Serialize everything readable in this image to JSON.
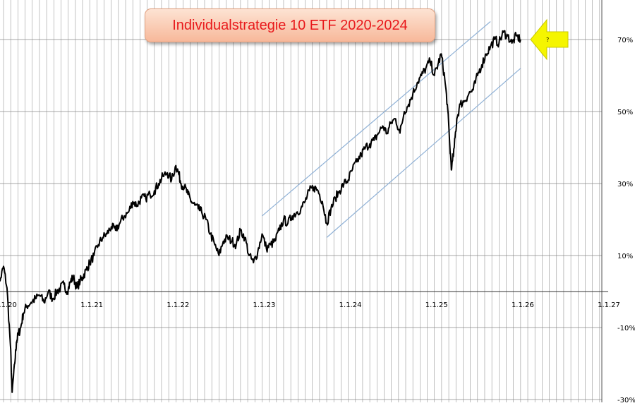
{
  "chart_data": {
    "type": "line",
    "title": "Individualstrategie 10 ETF 2020-2024",
    "annotation": "?",
    "xlim": [
      2020,
      2027
    ],
    "x_tick_labels": [
      {
        "x": 2020,
        "label": "1.1.20"
      },
      {
        "x": 2021,
        "label": "1.1.21"
      },
      {
        "x": 2022,
        "label": "1.1.22"
      },
      {
        "x": 2023,
        "label": "1.1.23"
      },
      {
        "x": 2024,
        "label": "1.1.24"
      },
      {
        "x": 2025,
        "label": "1.1.25"
      },
      {
        "x": 2026,
        "label": "1.1.26"
      },
      {
        "x": 2027,
        "label": "1.1.27"
      }
    ],
    "y_tick_labels": [
      {
        "y": 70,
        "label": "70%"
      },
      {
        "y": 50,
        "label": "50%"
      },
      {
        "y": 30,
        "label": "30%"
      },
      {
        "y": 10,
        "label": "10%"
      },
      {
        "y": -10,
        "label": "-10%"
      },
      {
        "y": -30,
        "label": "-30%"
      }
    ],
    "ylim": [
      -30,
      80
    ],
    "grid": true,
    "colors": {
      "series": "#000000",
      "channel": "#8fb1d6",
      "arrow": "#f5f500",
      "title": "#e8191c"
    },
    "series": [
      {
        "x": [
          2019.92,
          2019.96,
          2020.0,
          2020.04,
          2020.08,
          2020.1,
          2020.13,
          2020.15,
          2020.17,
          2020.2,
          2020.23,
          2020.27,
          2020.32,
          2020.37,
          2020.42,
          2020.47,
          2020.52,
          2020.57,
          2020.62,
          2020.66,
          2020.7,
          2020.74,
          2020.78,
          2020.81,
          2020.85,
          2020.89,
          2020.92,
          2020.96,
          2021.0,
          2021.05,
          2021.1,
          2021.15,
          2021.2,
          2021.25,
          2021.3,
          2021.35,
          2021.4,
          2021.45,
          2021.5,
          2021.55,
          2021.6,
          2021.65,
          2021.7,
          2021.75,
          2021.8,
          2021.85,
          2021.9,
          2021.95,
          2022.0,
          2022.03,
          2022.06,
          2022.1,
          2022.14,
          2022.18,
          2022.22,
          2022.26,
          2022.3,
          2022.35,
          2022.4,
          2022.45,
          2022.5,
          2022.55,
          2022.6,
          2022.65,
          2022.7,
          2022.75,
          2022.8,
          2022.85,
          2022.9,
          2022.95,
          2023.0,
          2023.05,
          2023.1,
          2023.15,
          2023.2,
          2023.25,
          2023.3,
          2023.35,
          2023.4,
          2023.45,
          2023.5,
          2023.55,
          2023.6,
          2023.65,
          2023.7,
          2023.75,
          2023.8,
          2023.85,
          2023.9,
          2023.95,
          2024.0,
          2024.05,
          2024.1,
          2024.15,
          2024.2,
          2024.25,
          2024.3,
          2024.35,
          2024.4,
          2024.45,
          2024.5,
          2024.55,
          2024.6,
          2024.65,
          2024.7,
          2024.75,
          2024.8,
          2024.85,
          2024.9,
          2024.95,
          2025.0,
          2025.04,
          2025.08,
          2025.12,
          2025.15,
          2025.18,
          2025.2,
          2025.23,
          2025.26,
          2025.3,
          2025.35,
          2025.4,
          2025.45,
          2025.5,
          2025.55,
          2025.6,
          2025.65,
          2025.7,
          2025.75,
          2025.8,
          2025.85,
          2025.9,
          2025.95,
          2026.0
        ],
        "y": [
          0.5,
          3,
          7,
          1,
          -15,
          -28,
          -20,
          -14,
          -12,
          -10,
          -6,
          -4,
          -3,
          -2,
          -1,
          -3,
          0,
          -2,
          0,
          1,
          2,
          0,
          3,
          4,
          1,
          3,
          4,
          6,
          8,
          10,
          13,
          15,
          16,
          18,
          17,
          19,
          21,
          22,
          25,
          24,
          26,
          26,
          27,
          28,
          30,
          32,
          33,
          31,
          35,
          33,
          30,
          29,
          27,
          25,
          24,
          23,
          22,
          20,
          16,
          13,
          10,
          14,
          15,
          14,
          13,
          17,
          15,
          10,
          8,
          11,
          16,
          12,
          13,
          14,
          17,
          20,
          19,
          21,
          22,
          23,
          25,
          28,
          29,
          28,
          25,
          19,
          23,
          26,
          28,
          30,
          31,
          34,
          36,
          38,
          40,
          41,
          42,
          44,
          46,
          44,
          47,
          48,
          44,
          50,
          52,
          55,
          58,
          60,
          62,
          64,
          60,
          63,
          66,
          59,
          52,
          40,
          34,
          40,
          48,
          52,
          53,
          55,
          56,
          60,
          63,
          66,
          68,
          70,
          69,
          72,
          71,
          69,
          71,
          70
        ]
      }
    ],
    "channel": {
      "upper": [
        {
          "x": 2023.0,
          "y": 21
        },
        {
          "x": 2025.65,
          "y": 75
        }
      ],
      "lower": [
        {
          "x": 2023.75,
          "y": 15
        },
        {
          "x": 2026.0,
          "y": 62
        }
      ]
    }
  }
}
